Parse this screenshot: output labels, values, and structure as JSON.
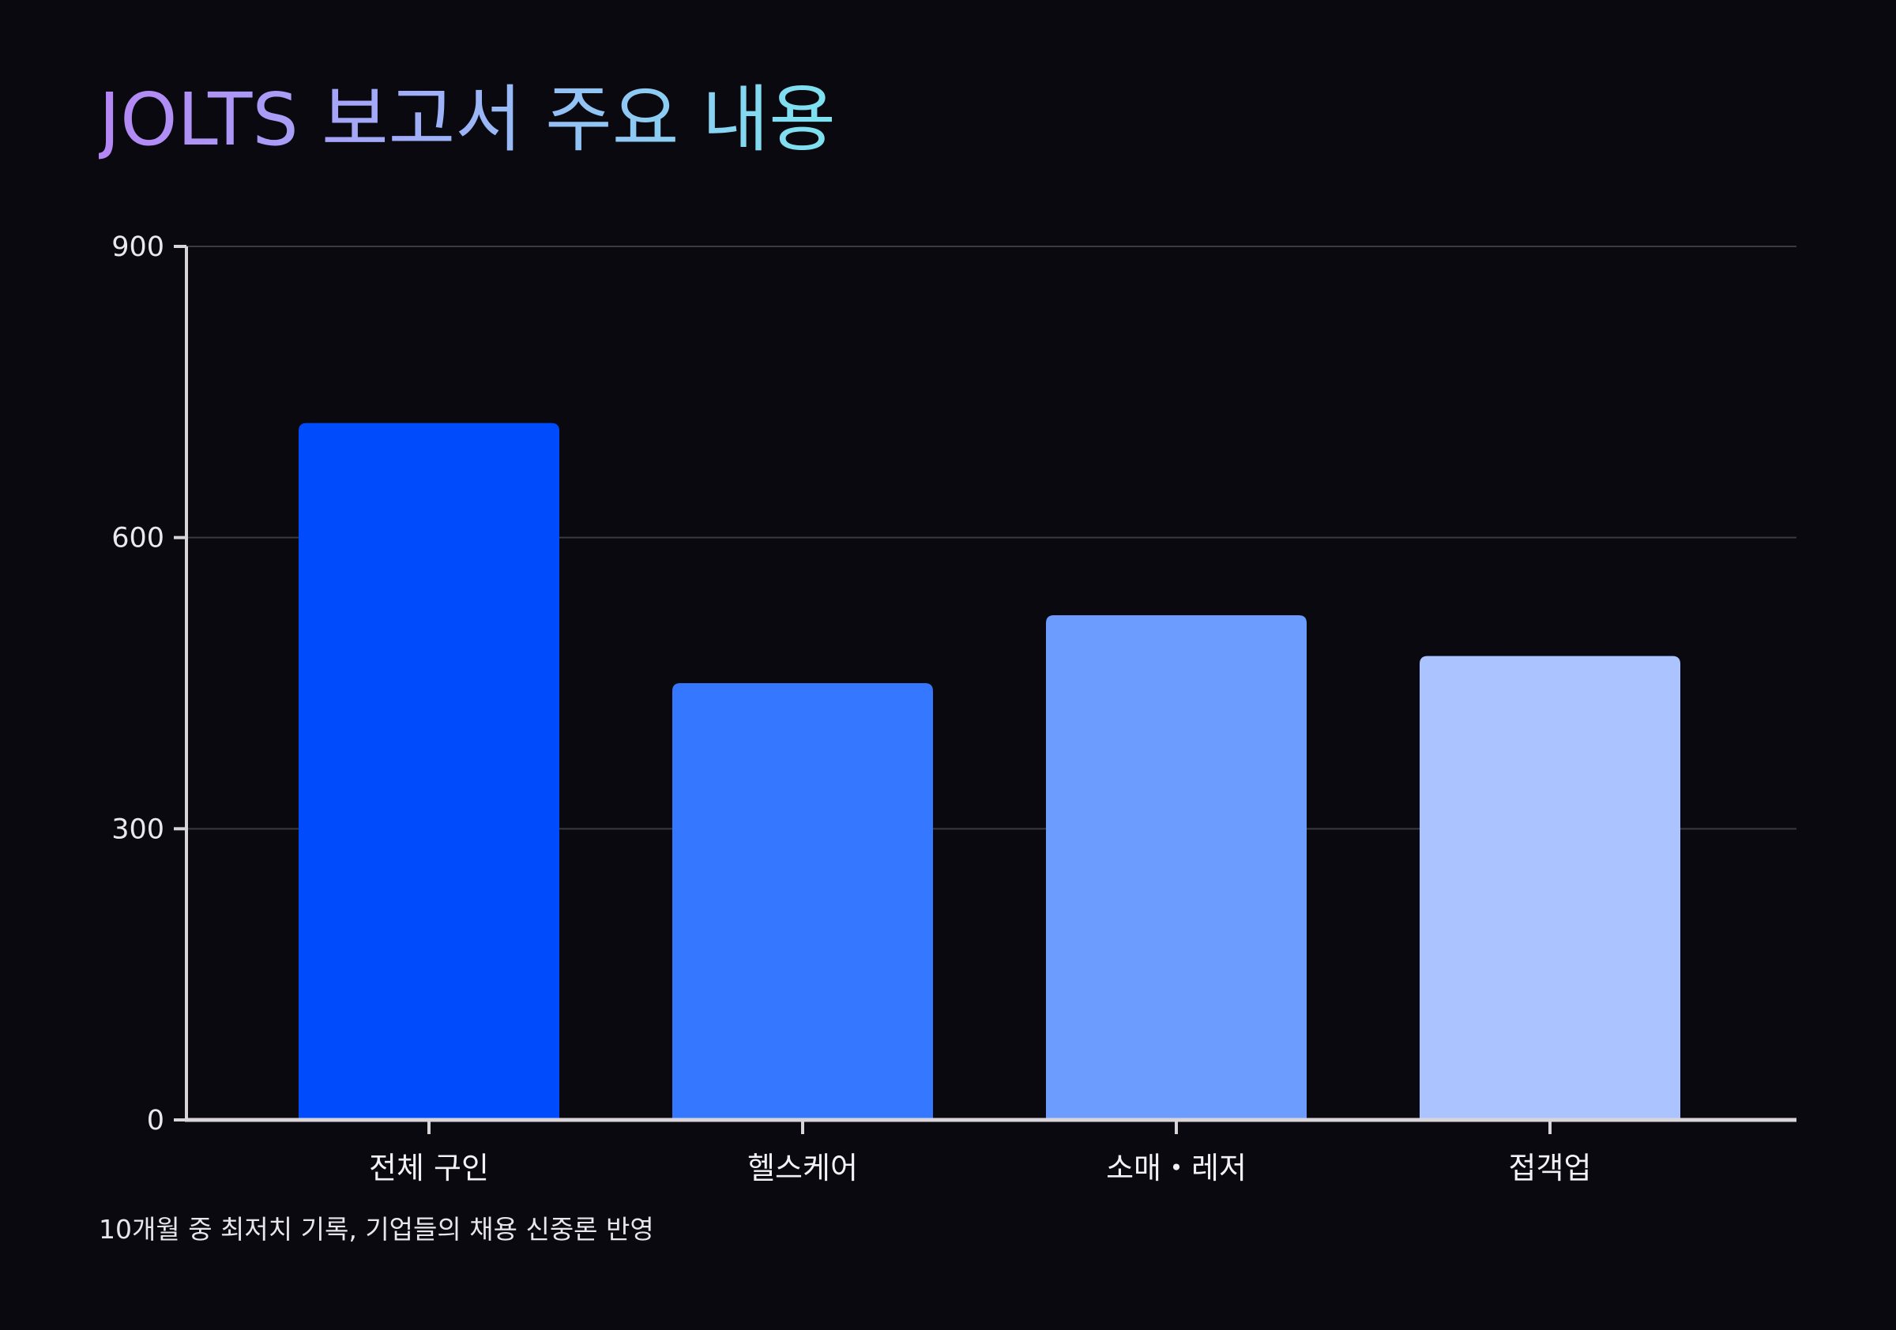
{
  "title": "JOLTS 보고서 주요 내용",
  "note": "10개월 중 최저치 기록, 기업들의 채용 신중론 반영",
  "chart_data": {
    "type": "bar",
    "title": "JOLTS 보고서 주요 내용",
    "xlabel": "",
    "ylabel": "",
    "categories": [
      "전체 구인",
      "헬스케어",
      "소매・레저",
      "접객업"
    ],
    "values": [
      718,
      450,
      520,
      478
    ],
    "colors": [
      "#004cfc",
      "#3577ff",
      "#6d9cff",
      "#abc4ff"
    ],
    "ylim": [
      0,
      900
    ],
    "yticks": [
      0,
      300,
      600,
      900
    ],
    "grid": true,
    "legend": "none",
    "background": "#09090f",
    "axis_color": "#d8d4d8",
    "grid_color": "#3a3a44"
  }
}
